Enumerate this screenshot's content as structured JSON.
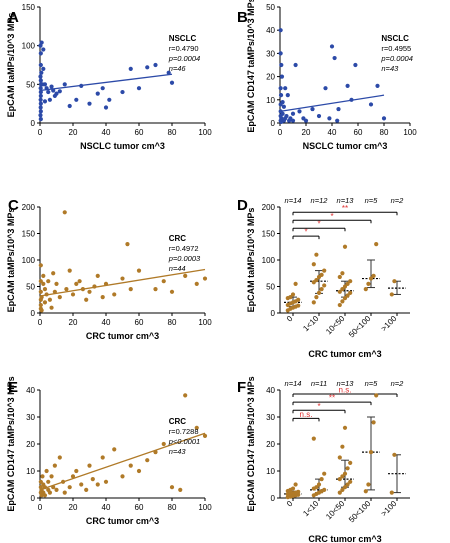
{
  "colors": {
    "nsclc": "#2c4aa8",
    "crc": "#b07a28",
    "sig": "#e03030"
  },
  "chart_data": [
    {
      "panel": "A",
      "type": "scatter",
      "xlabel": "NSCLC tumor cm^3",
      "ylabel": "EpCAM taMPs/10^3 MPs",
      "xlim": [
        0,
        100
      ],
      "ylim": [
        0,
        150
      ],
      "xticks": [
        0,
        20,
        40,
        60,
        80,
        100
      ],
      "yticks": [
        0,
        50,
        100,
        150
      ],
      "color_key": "nsclc",
      "annotation": {
        "title": "NSCLC",
        "r": "r=0.4790",
        "p": "p=0.0004",
        "n": "n=46"
      },
      "points": [
        [
          0.3,
          100
        ],
        [
          0.5,
          90
        ],
        [
          0.5,
          75
        ],
        [
          0.8,
          65
        ],
        [
          0.3,
          60
        ],
        [
          0.5,
          55
        ],
        [
          0.6,
          50
        ],
        [
          0.4,
          45
        ],
        [
          0.5,
          40
        ],
        [
          0.5,
          35
        ],
        [
          0.4,
          30
        ],
        [
          0.5,
          25
        ],
        [
          0.4,
          20
        ],
        [
          0.5,
          15
        ],
        [
          0.3,
          10
        ],
        [
          0.5,
          5
        ],
        [
          1,
          104
        ],
        [
          1.5,
          50
        ],
        [
          2,
          95
        ],
        [
          2,
          70
        ],
        [
          3,
          28
        ],
        [
          3,
          50
        ],
        [
          4,
          45
        ],
        [
          5,
          40
        ],
        [
          6,
          30
        ],
        [
          7,
          47
        ],
        [
          8,
          42
        ],
        [
          9,
          35
        ],
        [
          10,
          38
        ],
        [
          12,
          41
        ],
        [
          15,
          50
        ],
        [
          18,
          22
        ],
        [
          22,
          30
        ],
        [
          25,
          48
        ],
        [
          30,
          25
        ],
        [
          35,
          38
        ],
        [
          38,
          45
        ],
        [
          42,
          30
        ],
        [
          50,
          40
        ],
        [
          55,
          70
        ],
        [
          60,
          45
        ],
        [
          65,
          72
        ],
        [
          70,
          75
        ],
        [
          78,
          65
        ],
        [
          80,
          52
        ],
        [
          40,
          20
        ]
      ],
      "regression": [
        [
          0,
          42
        ],
        [
          80,
          63
        ]
      ]
    },
    {
      "panel": "B",
      "type": "scatter",
      "xlabel": "NSCLC tumor cm^3",
      "ylabel": "EpCAM CD147 taMPs/10^3 MPs",
      "xlim": [
        0,
        100
      ],
      "ylim": [
        0,
        50
      ],
      "xticks": [
        0,
        20,
        40,
        60,
        80,
        100
      ],
      "yticks": [
        0,
        10,
        20,
        30,
        40,
        50
      ],
      "color_key": "nsclc",
      "annotation": {
        "title": "NSCLC",
        "r": "r=0.4955",
        "p": "p=0.0004",
        "n": "n=43"
      },
      "points": [
        [
          0.5,
          40
        ],
        [
          0.5,
          30
        ],
        [
          1,
          25
        ],
        [
          1.5,
          20
        ],
        [
          0.5,
          15
        ],
        [
          0.8,
          12
        ],
        [
          0.5,
          8
        ],
        [
          0.5,
          5
        ],
        [
          0.5,
          3
        ],
        [
          0.5,
          1
        ],
        [
          1,
          2
        ],
        [
          2,
          9
        ],
        [
          2,
          4
        ],
        [
          3,
          7
        ],
        [
          4,
          15
        ],
        [
          5,
          3
        ],
        [
          6,
          12
        ],
        [
          8,
          2
        ],
        [
          10,
          4
        ],
        [
          12,
          25
        ],
        [
          15,
          5
        ],
        [
          18,
          2
        ],
        [
          25,
          6
        ],
        [
          30,
          3
        ],
        [
          35,
          15
        ],
        [
          40,
          33
        ],
        [
          42,
          28
        ],
        [
          45,
          6
        ],
        [
          52,
          16
        ],
        [
          55,
          10
        ],
        [
          58,
          25
        ],
        [
          70,
          8
        ],
        [
          75,
          16
        ],
        [
          80,
          2
        ],
        [
          2,
          1
        ],
        [
          3,
          1
        ],
        [
          4,
          2
        ],
        [
          1,
          0.5
        ],
        [
          7,
          1
        ],
        [
          20,
          1
        ],
        [
          38,
          2
        ],
        [
          44,
          1
        ],
        [
          10,
          1
        ]
      ],
      "regression": [
        [
          0,
          5
        ],
        [
          80,
          12
        ]
      ]
    },
    {
      "panel": "C",
      "type": "scatter",
      "xlabel": "CRC tumor cm^3",
      "ylabel": "EpCAM taMPs/10^3 MPs",
      "xlim": [
        0,
        100
      ],
      "ylim": [
        0,
        200
      ],
      "xticks": [
        0,
        20,
        40,
        60,
        80,
        100
      ],
      "yticks": [
        0,
        50,
        100,
        150,
        200
      ],
      "color_key": "crc",
      "annotation": {
        "title": "CRC",
        "r": "r=0.4972",
        "p": "p=0.0003",
        "n": "n=44"
      },
      "points": [
        [
          0.5,
          90
        ],
        [
          0.5,
          60
        ],
        [
          0.5,
          40
        ],
        [
          0.5,
          25
        ],
        [
          0.5,
          15
        ],
        [
          0.5,
          8
        ],
        [
          1,
          5
        ],
        [
          1,
          30
        ],
        [
          2,
          70
        ],
        [
          2,
          55
        ],
        [
          3,
          45
        ],
        [
          3,
          20
        ],
        [
          4,
          35
        ],
        [
          5,
          60
        ],
        [
          6,
          25
        ],
        [
          7,
          10
        ],
        [
          8,
          75
        ],
        [
          9,
          40
        ],
        [
          10,
          55
        ],
        [
          12,
          30
        ],
        [
          15,
          190
        ],
        [
          16,
          45
        ],
        [
          18,
          80
        ],
        [
          20,
          35
        ],
        [
          22,
          55
        ],
        [
          24,
          60
        ],
        [
          26,
          45
        ],
        [
          30,
          40
        ],
        [
          33,
          50
        ],
        [
          35,
          70
        ],
        [
          38,
          30
        ],
        [
          40,
          55
        ],
        [
          45,
          35
        ],
        [
          50,
          65
        ],
        [
          53,
          130
        ],
        [
          55,
          45
        ],
        [
          60,
          80
        ],
        [
          70,
          45
        ],
        [
          75,
          60
        ],
        [
          80,
          40
        ],
        [
          88,
          70
        ],
        [
          95,
          55
        ],
        [
          100,
          65
        ],
        [
          28,
          25
        ]
      ],
      "regression": [
        [
          0,
          32
        ],
        [
          100,
          82
        ]
      ]
    },
    {
      "panel": "D",
      "type": "scatter",
      "xlabel": "CRC tumor cm^3",
      "ylabel": "EpCAM taMPs/10^3 MPs",
      "ylim": [
        0,
        200
      ],
      "yticks": [
        0,
        50,
        100,
        150,
        200
      ],
      "color_key": "crc",
      "groups": [
        {
          "label": "0",
          "n": "n=14",
          "median": 20,
          "q1": 12,
          "q3": 30,
          "points": [
            5,
            8,
            10,
            12,
            14,
            15,
            18,
            20,
            22,
            25,
            28,
            30,
            35,
            55
          ]
        },
        {
          "label": "1<10",
          "n": "n=12",
          "median": 60,
          "q1": 37,
          "q3": 80,
          "points": [
            20,
            30,
            38,
            45,
            52,
            58,
            62,
            68,
            72,
            80,
            92,
            110
          ]
        },
        {
          "label": "10<50",
          "n": "n=13",
          "median": 42,
          "q1": 30,
          "q3": 60,
          "points": [
            15,
            22,
            28,
            33,
            38,
            40,
            45,
            50,
            55,
            60,
            68,
            75,
            125
          ]
        },
        {
          "label": "50<100",
          "n": "n=5",
          "median": 65,
          "q1": 48,
          "q3": 100,
          "points": [
            45,
            55,
            65,
            70,
            130
          ]
        },
        {
          "label": ">100",
          "n": "n=2",
          "median": 47,
          "q1": 35,
          "q3": 60,
          "points": [
            35,
            60
          ]
        }
      ],
      "brackets": [
        {
          "from": 0,
          "to": 1,
          "label": "*",
          "y": 145
        },
        {
          "from": 0,
          "to": 2,
          "label": "*",
          "y": 160
        },
        {
          "from": 0,
          "to": 3,
          "label": "*",
          "y": 175
        },
        {
          "from": 0,
          "to": 4,
          "label": "**",
          "y": 190
        }
      ]
    },
    {
      "panel": "E",
      "type": "scatter",
      "xlabel": "CRC tumor cm^3",
      "ylabel": "EpCAM CD147 taMPs/10^3 MPs",
      "xlim": [
        0,
        100
      ],
      "ylim": [
        0,
        40
      ],
      "xticks": [
        0,
        20,
        40,
        60,
        80,
        100
      ],
      "yticks": [
        0,
        10,
        20,
        30,
        40
      ],
      "color_key": "crc",
      "annotation": {
        "title": "CRC",
        "r": "r=0.7288",
        "p": "p<0.0001",
        "n": "n=43"
      },
      "points": [
        [
          0.5,
          2
        ],
        [
          0.5,
          4
        ],
        [
          0.5,
          6
        ],
        [
          1,
          1
        ],
        [
          1,
          3
        ],
        [
          1.5,
          8
        ],
        [
          2,
          2
        ],
        [
          2,
          5
        ],
        [
          3,
          4
        ],
        [
          3,
          1
        ],
        [
          4,
          10
        ],
        [
          5,
          3
        ],
        [
          5,
          6
        ],
        [
          6,
          2
        ],
        [
          7,
          8
        ],
        [
          8,
          4
        ],
        [
          9,
          12
        ],
        [
          10,
          3
        ],
        [
          12,
          15
        ],
        [
          14,
          6
        ],
        [
          15,
          2
        ],
        [
          18,
          4
        ],
        [
          20,
          8
        ],
        [
          22,
          10
        ],
        [
          25,
          5
        ],
        [
          28,
          3
        ],
        [
          30,
          12
        ],
        [
          32,
          7
        ],
        [
          35,
          5
        ],
        [
          38,
          15
        ],
        [
          40,
          6
        ],
        [
          45,
          18
        ],
        [
          50,
          8
        ],
        [
          55,
          12
        ],
        [
          60,
          10
        ],
        [
          65,
          14
        ],
        [
          70,
          17
        ],
        [
          75,
          20
        ],
        [
          80,
          4
        ],
        [
          88,
          38
        ],
        [
          95,
          26
        ],
        [
          100,
          23
        ],
        [
          85,
          3
        ]
      ],
      "regression": [
        [
          0,
          3
        ],
        [
          100,
          24
        ]
      ]
    },
    {
      "panel": "F",
      "type": "scatter",
      "xlabel": "CRC tumor cm^3",
      "ylabel": "EpCAM CD147 taMPs/10^3 MPs",
      "ylim": [
        0,
        40
      ],
      "yticks": [
        0,
        10,
        20,
        30,
        40
      ],
      "color_key": "crc",
      "groups": [
        {
          "label": "0",
          "n": "n=14",
          "median": 1.5,
          "q1": 0.8,
          "q3": 2.5,
          "points": [
            0.3,
            0.5,
            0.8,
            1,
            1.2,
            1.4,
            1.5,
            1.8,
            2,
            2.3,
            2.6,
            3,
            3.5,
            5
          ]
        },
        {
          "label": "1<10",
          "n": "n=11",
          "median": 3,
          "q1": 2,
          "q3": 7,
          "points": [
            1,
            1.5,
            2,
            2.5,
            3,
            3.5,
            4,
            5,
            7,
            9,
            22
          ]
        },
        {
          "label": "10<50",
          "n": "n=13",
          "median": 7,
          "q1": 4,
          "q3": 14,
          "points": [
            2,
            3,
            4,
            5,
            6,
            7,
            8,
            9,
            11,
            13,
            15,
            19,
            26
          ]
        },
        {
          "label": "50<100",
          "n": "n=5",
          "median": 17,
          "q1": 3,
          "q3": 30,
          "points": [
            2.5,
            5,
            17,
            28,
            38
          ]
        },
        {
          "label": ">100",
          "n": "n=2",
          "median": 9,
          "q1": 2,
          "q3": 16,
          "points": [
            2,
            16
          ]
        }
      ],
      "brackets": [
        {
          "from": 0,
          "to": 1,
          "label": "n.s.",
          "y": 29.5
        },
        {
          "from": 0,
          "to": 2,
          "label": "*",
          "y": 32.5
        },
        {
          "from": 0,
          "to": 3,
          "label": "**",
          "y": 35.5
        },
        {
          "from": 0,
          "to": 4,
          "label": "n.s.",
          "y": 38.5
        }
      ]
    }
  ]
}
